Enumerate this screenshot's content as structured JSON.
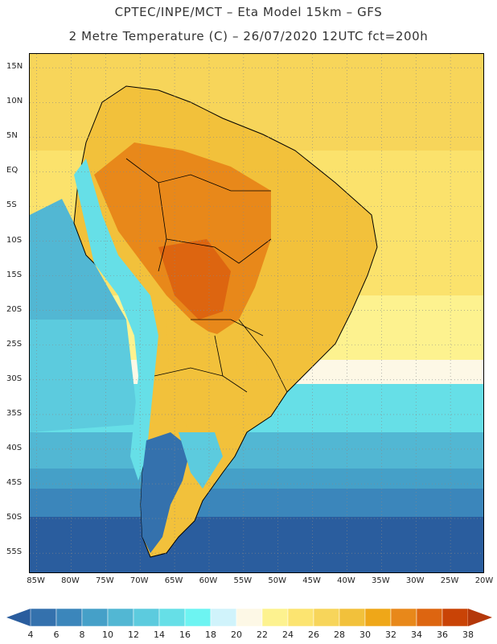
{
  "title": {
    "line1": "CPTEC/INPE/MCT –  Eta Model 15km – GFS",
    "line2": "2 Metre Temperature (C) – 26/07/2020 12UTC fct=200h"
  },
  "map": {
    "lon_range": [
      -86,
      -20
    ],
    "lat_range": [
      -58,
      17
    ],
    "lat_labels": [
      "15N",
      "10N",
      "5N",
      "EQ",
      "5S",
      "10S",
      "15S",
      "20S",
      "25S",
      "30S",
      "35S",
      "40S",
      "45S",
      "50S",
      "55S"
    ],
    "lat_values": [
      15,
      10,
      5,
      0,
      -5,
      -10,
      -15,
      -20,
      -25,
      -30,
      -35,
      -40,
      -45,
      -50,
      -55
    ],
    "lon_labels": [
      "85W",
      "80W",
      "75W",
      "70W",
      "65W",
      "60W",
      "55W",
      "50W",
      "45W",
      "40W",
      "35W",
      "30W",
      "25W",
      "20W"
    ],
    "lon_values": [
      -85,
      -80,
      -75,
      -70,
      -65,
      -60,
      -55,
      -50,
      -45,
      -40,
      -35,
      -30,
      -25,
      -20
    ]
  },
  "colorbar": {
    "labels": [
      "4",
      "6",
      "8",
      "10",
      "12",
      "14",
      "16",
      "18",
      "20",
      "22",
      "24",
      "26",
      "28",
      "30",
      "32",
      "34",
      "36",
      "38"
    ],
    "colors": [
      "#2a5d9e",
      "#3471ad",
      "#3b86bb",
      "#45a0c8",
      "#52b7d3",
      "#5ccbde",
      "#66dfe7",
      "#6df4f2",
      "#d0f3fb",
      "#fdf8e6",
      "#fdf28f",
      "#fce470",
      "#f7d55a",
      "#f2c13b",
      "#efa718",
      "#e8881a",
      "#dd6510",
      "#c94306",
      "#b4380a"
    ]
  },
  "colors": {
    "ocean_far_south": "#2a5d9e",
    "ocean_south": "#3b86bb",
    "ocean_mid": "#52b7d3",
    "ocean_temperate": "#5ccbde",
    "ocean_subtropic": "#fdf28f",
    "ocean_tropic": "#f7d55a",
    "land_hot": "#e8881a",
    "land_warm": "#f2c13b",
    "andes": "#66dfe7",
    "patagonia": "#3471ad"
  }
}
